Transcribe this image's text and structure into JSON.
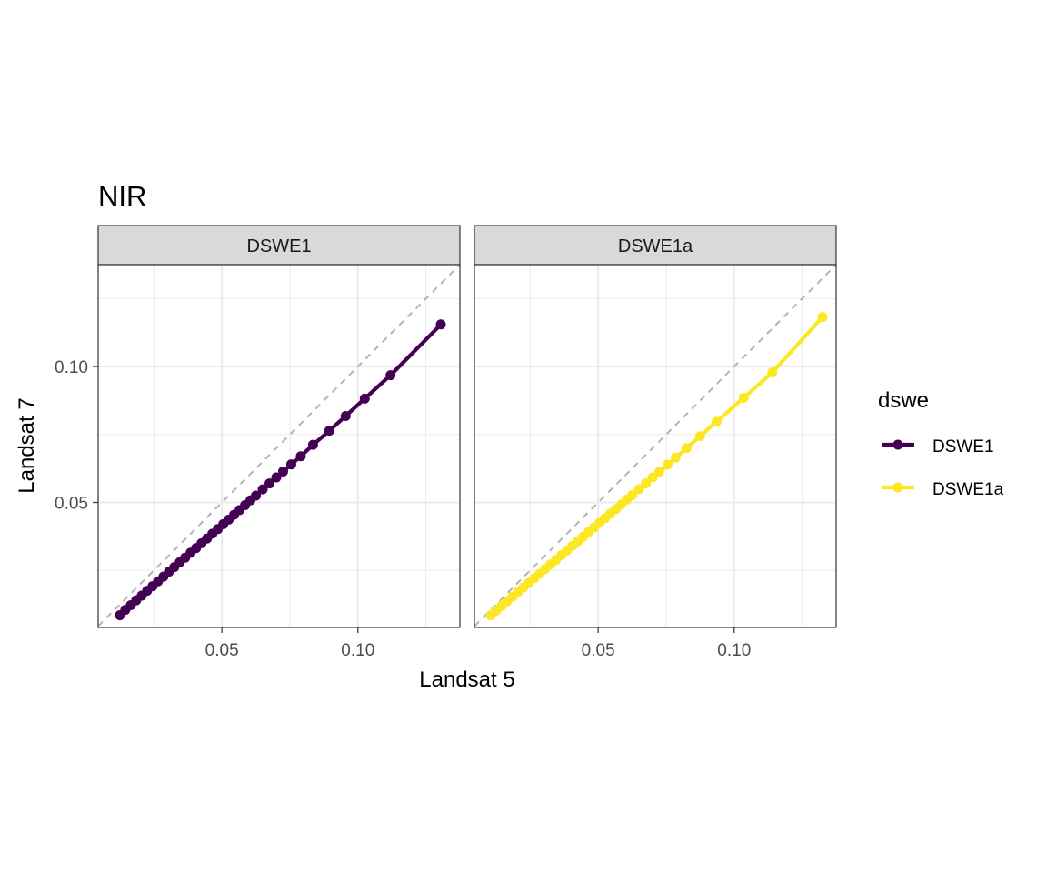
{
  "chart_data": {
    "type": "line",
    "title": "NIR",
    "xlabel": "Landsat 5",
    "ylabel": "Landsat 7",
    "xlim": [
      0.0045,
      0.1375
    ],
    "ylim": [
      0.004,
      0.1375
    ],
    "x_ticks": [
      0.05,
      0.1
    ],
    "x_tick_labels": [
      "0.05",
      "0.10"
    ],
    "y_ticks": [
      0.05,
      0.1
    ],
    "y_tick_labels": [
      "0.05",
      "0.10"
    ],
    "grid": true,
    "reference_line": {
      "type": "identity",
      "style": "dashed",
      "color": "#b3b3b3"
    },
    "legend": {
      "title": "dswe",
      "position": "right"
    },
    "facets": [
      {
        "label": "DSWE1",
        "series": "DSWE1",
        "points": [
          [
            0.0125,
            0.0085
          ],
          [
            0.0145,
            0.0105
          ],
          [
            0.0165,
            0.0122
          ],
          [
            0.0185,
            0.014
          ],
          [
            0.0205,
            0.0157
          ],
          [
            0.0225,
            0.0175
          ],
          [
            0.0245,
            0.0192
          ],
          [
            0.0265,
            0.021
          ],
          [
            0.0285,
            0.0227
          ],
          [
            0.0305,
            0.0245
          ],
          [
            0.0325,
            0.0262
          ],
          [
            0.0345,
            0.028
          ],
          [
            0.0365,
            0.0297
          ],
          [
            0.0385,
            0.0315
          ],
          [
            0.0405,
            0.0332
          ],
          [
            0.0425,
            0.035
          ],
          [
            0.0445,
            0.0367
          ],
          [
            0.0465,
            0.0385
          ],
          [
            0.0485,
            0.0402
          ],
          [
            0.0505,
            0.042
          ],
          [
            0.0525,
            0.0437
          ],
          [
            0.0545,
            0.0455
          ],
          [
            0.0565,
            0.0472
          ],
          [
            0.0585,
            0.049
          ],
          [
            0.0605,
            0.0508
          ],
          [
            0.0625,
            0.0525
          ],
          [
            0.065,
            0.0548
          ],
          [
            0.0675,
            0.057
          ],
          [
            0.07,
            0.0592
          ],
          [
            0.0725,
            0.0614
          ],
          [
            0.0755,
            0.064
          ],
          [
            0.079,
            0.067
          ],
          [
            0.0835,
            0.0712
          ],
          [
            0.0895,
            0.0764
          ],
          [
            0.0955,
            0.0818
          ],
          [
            0.1025,
            0.0882
          ],
          [
            0.112,
            0.0968
          ],
          [
            0.1305,
            0.1155
          ]
        ]
      },
      {
        "label": "DSWE1a",
        "series": "DSWE1a",
        "points": [
          [
            0.0105,
            0.0085
          ],
          [
            0.0125,
            0.0102
          ],
          [
            0.0145,
            0.0119
          ],
          [
            0.0165,
            0.0136
          ],
          [
            0.0185,
            0.0153
          ],
          [
            0.0205,
            0.017
          ],
          [
            0.0225,
            0.0187
          ],
          [
            0.0245,
            0.0204
          ],
          [
            0.0265,
            0.0221
          ],
          [
            0.0285,
            0.0238
          ],
          [
            0.0305,
            0.0255
          ],
          [
            0.0325,
            0.0272
          ],
          [
            0.0345,
            0.0289
          ],
          [
            0.0365,
            0.0306
          ],
          [
            0.0385,
            0.0323
          ],
          [
            0.0405,
            0.034
          ],
          [
            0.0425,
            0.0357
          ],
          [
            0.0445,
            0.0374
          ],
          [
            0.0465,
            0.0391
          ],
          [
            0.0485,
            0.0408
          ],
          [
            0.0505,
            0.0425
          ],
          [
            0.0525,
            0.0442
          ],
          [
            0.0545,
            0.0459
          ],
          [
            0.0565,
            0.0476
          ],
          [
            0.0585,
            0.0493
          ],
          [
            0.0605,
            0.051
          ],
          [
            0.0625,
            0.0527
          ],
          [
            0.065,
            0.0549
          ],
          [
            0.0675,
            0.057
          ],
          [
            0.07,
            0.0592
          ],
          [
            0.0725,
            0.0613
          ],
          [
            0.0755,
            0.0639
          ],
          [
            0.0785,
            0.0665
          ],
          [
            0.0825,
            0.07
          ],
          [
            0.0875,
            0.0744
          ],
          [
            0.0935,
            0.0797
          ],
          [
            0.1035,
            0.0885
          ],
          [
            0.114,
            0.0978
          ],
          [
            0.1325,
            0.1182
          ]
        ]
      }
    ],
    "series": [
      {
        "name": "DSWE1",
        "color": "#440154"
      },
      {
        "name": "DSWE1a",
        "color": "#fde725"
      }
    ]
  }
}
